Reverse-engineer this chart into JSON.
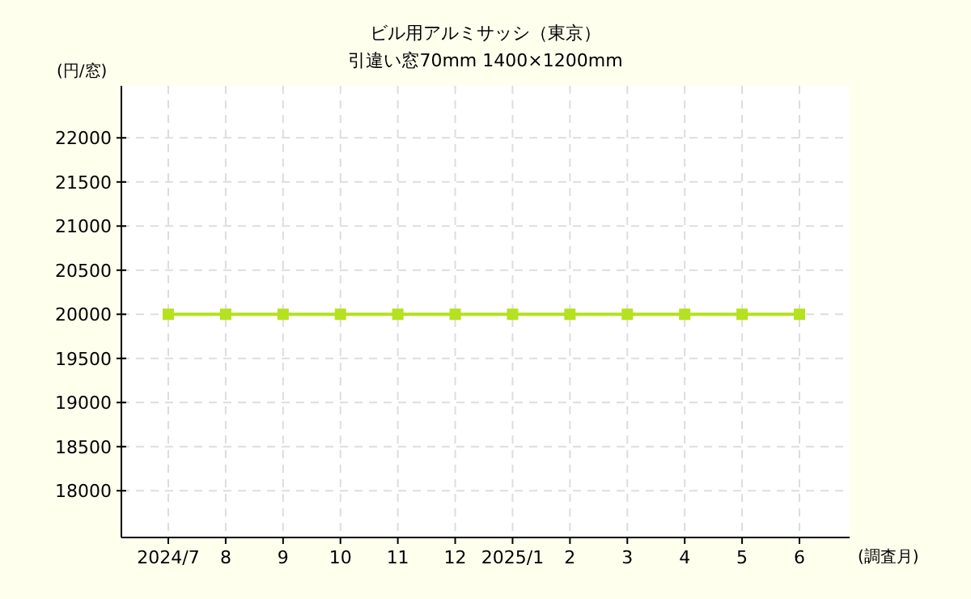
{
  "chart_data": {
    "type": "line",
    "title": "ビル用アルミサッシ（東京）",
    "subtitle": "引違い窓70mm 1400×1200mm",
    "ylabel": "(円/窓)",
    "xlabel": "(調査月)",
    "categories": [
      "2024/7",
      "8",
      "9",
      "10",
      "11",
      "12",
      "2025/1",
      "2",
      "3",
      "4",
      "5",
      "6"
    ],
    "series": [
      {
        "color": "#b5e11e",
        "values": [
          20000,
          20000,
          20000,
          20000,
          20000,
          20000,
          20000,
          20000,
          20000,
          20000,
          20000,
          20000
        ]
      }
    ],
    "ylim": [
      17470,
      22590
    ],
    "yticks": [
      18000,
      18500,
      19000,
      19500,
      20000,
      20500,
      21000,
      21500,
      22000
    ],
    "grid": true,
    "marker": "square",
    "line_style": "solid"
  }
}
